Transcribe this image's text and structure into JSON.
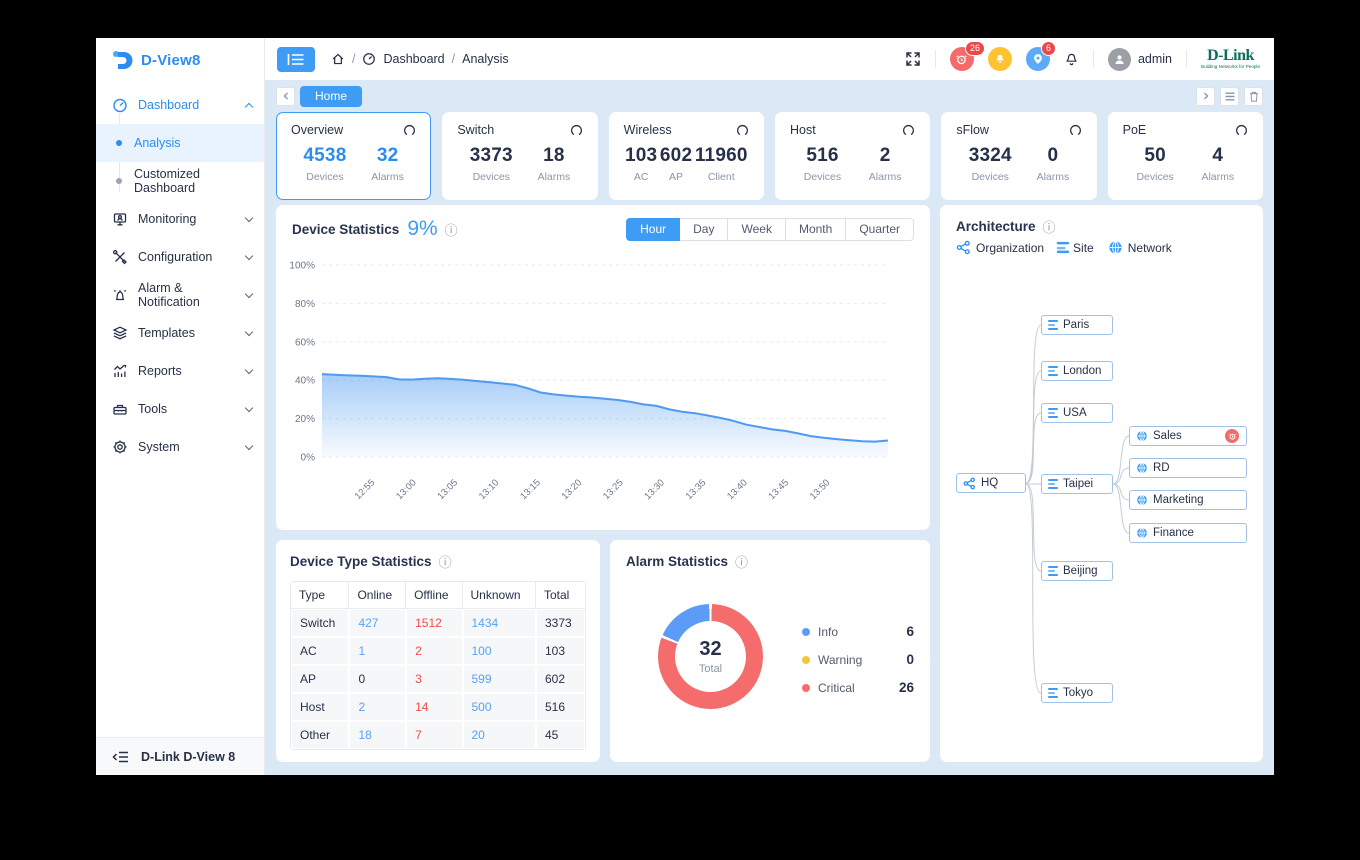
{
  "colors": {
    "primary_blue": "#3f9cf4",
    "value_blue": "#2d8cf0",
    "critical_red": "#f56c6c",
    "warning_yellow": "#f5c53c",
    "info_blue": "#5b9cf8",
    "dlink_green": "#0a705a",
    "content_bg": "#dbe8f5"
  },
  "sidebar": {
    "logo_text": "D-View8",
    "items": [
      {
        "label": "Dashboard"
      },
      {
        "label": "Analysis"
      },
      {
        "label": "Customized Dashboard"
      },
      {
        "label": "Monitoring"
      },
      {
        "label": "Configuration"
      },
      {
        "label": "Alarm & Notification"
      },
      {
        "label": "Templates"
      },
      {
        "label": "Reports"
      },
      {
        "label": "Tools"
      },
      {
        "label": "System"
      }
    ],
    "footer_label": "D-Link D-View 8"
  },
  "header": {
    "breadcrumb": {
      "section": "Dashboard",
      "page": "Analysis"
    },
    "alarm_badge": "26",
    "location_badge": "6",
    "username": "admin",
    "logo_text": "D-Link",
    "logo_tagline": "Building Networks for People"
  },
  "tab_bar": {
    "active_tab": "Home"
  },
  "stat_cards": [
    {
      "title": "Overview",
      "stats": [
        {
          "value": "4538",
          "label": "Devices"
        },
        {
          "value": "32",
          "label": "Alarms"
        }
      ]
    },
    {
      "title": "Switch",
      "stats": [
        {
          "value": "3373",
          "label": "Devices"
        },
        {
          "value": "18",
          "label": "Alarms"
        }
      ]
    },
    {
      "title": "Wireless",
      "stats": [
        {
          "value": "103",
          "label": "AC"
        },
        {
          "value": "602",
          "label": "AP"
        },
        {
          "value": "11960",
          "label": "Client"
        }
      ]
    },
    {
      "title": "Host",
      "stats": [
        {
          "value": "516",
          "label": "Devices"
        },
        {
          "value": "2",
          "label": "Alarms"
        }
      ]
    },
    {
      "title": "sFlow",
      "stats": [
        {
          "value": "3324",
          "label": "Devices"
        },
        {
          "value": "0",
          "label": "Alarms"
        }
      ]
    },
    {
      "title": "PoE",
      "stats": [
        {
          "value": "50",
          "label": "Devices"
        },
        {
          "value": "4",
          "label": "Alarms"
        }
      ]
    }
  ],
  "device_statistics": {
    "title": "Device Statistics",
    "percent": "9%",
    "tabs": [
      "Hour",
      "Day",
      "Week",
      "Month",
      "Quarter"
    ],
    "active_tab": "Hour",
    "chart_data": {
      "type": "area",
      "title": "Device Statistics",
      "x_tick_labels": [
        "12:55",
        "13:00",
        "13:05",
        "13:10",
        "13:15",
        "13:20",
        "13:25",
        "13:30",
        "13:35",
        "13:40",
        "13:45",
        "13:50"
      ],
      "values": [
        43.2,
        42.8,
        42.5,
        42.3,
        42.0,
        41.6,
        40.4,
        40.3,
        40.8,
        41.0,
        40.7,
        40.2,
        39.6,
        39.0,
        38.3,
        37.6,
        35.8,
        33.6,
        32.6,
        32.0,
        31.4,
        31.0,
        30.3,
        29.7,
        28.7,
        27.4,
        26.6,
        24.8,
        23.6,
        22.8,
        21.6,
        20.3,
        18.8,
        16.8,
        15.6,
        14.4,
        13.6,
        12.3,
        10.9,
        10.0,
        9.3,
        8.7,
        8.2,
        8.0,
        8.6
      ],
      "ylim": [
        0,
        100
      ],
      "yticks": [
        "0%",
        "20%",
        "40%",
        "60%",
        "80%",
        "100%"
      ],
      "grid": "dashed",
      "line_color": "#4e9af0"
    }
  },
  "architecture": {
    "title": "Architecture",
    "legend": [
      {
        "label": "Organization"
      },
      {
        "label": "Site"
      },
      {
        "label": "Network"
      }
    ],
    "nodes": [
      {
        "label": "HQ",
        "type": "organization"
      },
      {
        "label": "Paris",
        "type": "site"
      },
      {
        "label": "London",
        "type": "site"
      },
      {
        "label": "USA",
        "type": "site"
      },
      {
        "label": "Taipei",
        "type": "site"
      },
      {
        "label": "Beijing",
        "type": "site"
      },
      {
        "label": "Tokyo",
        "type": "site"
      },
      {
        "label": "Sales",
        "type": "network",
        "has_alarm": true
      },
      {
        "label": "RD",
        "type": "network"
      },
      {
        "label": "Marketing",
        "type": "network"
      },
      {
        "label": "Finance",
        "type": "network"
      }
    ]
  },
  "device_type_statistics": {
    "title": "Device Type Statistics",
    "chart_data": {
      "type": "table",
      "columns": [
        "Type",
        "Online",
        "Offline",
        "Unknown",
        "Total"
      ],
      "rows": [
        [
          "Switch",
          "427",
          "1512",
          "1434",
          "3373"
        ],
        [
          "AC",
          "1",
          "2",
          "100",
          "103"
        ],
        [
          "AP",
          "0",
          "3",
          "599",
          "602"
        ],
        [
          "Host",
          "2",
          "14",
          "500",
          "516"
        ],
        [
          "Other",
          "18",
          "7",
          "20",
          "45"
        ]
      ]
    }
  },
  "alarm_statistics": {
    "title": "Alarm Statistics",
    "total": "32",
    "total_label": "Total",
    "chart_data": {
      "type": "donut",
      "segments": [
        {
          "label": "Info",
          "value": 6,
          "display": "6",
          "color": "#5b9cf8"
        },
        {
          "label": "Warning",
          "value": 0,
          "display": "0",
          "color": "#f5c53c"
        },
        {
          "label": "Critical",
          "value": 26,
          "display": "26",
          "color": "#f56c6c"
        }
      ]
    }
  }
}
